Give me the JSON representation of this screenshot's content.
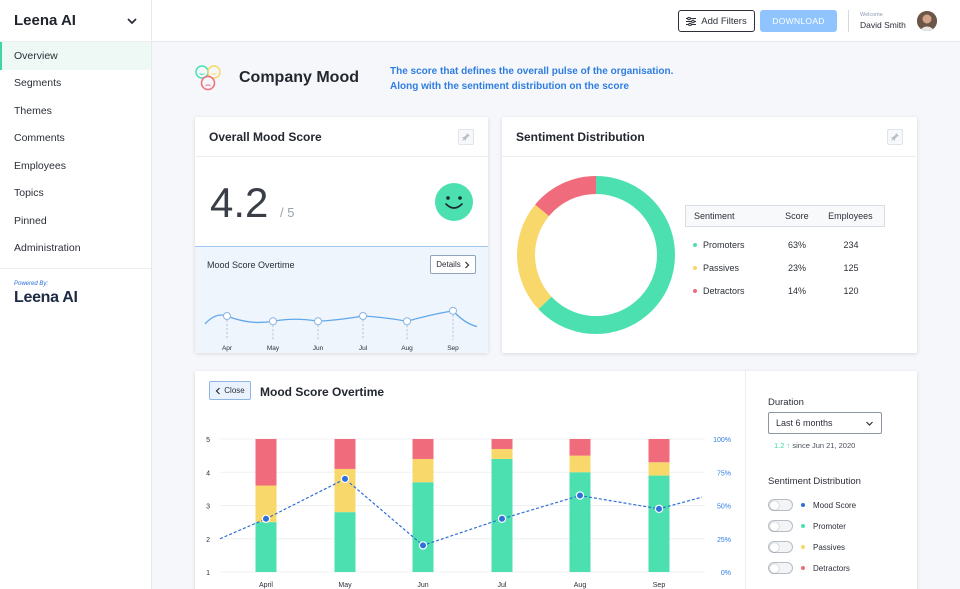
{
  "app": {
    "title": "Leena AI"
  },
  "sidebar": {
    "items": [
      {
        "label": "Overview",
        "active": true
      },
      {
        "label": "Segments"
      },
      {
        "label": "Themes"
      },
      {
        "label": "Comments"
      },
      {
        "label": "Employees"
      },
      {
        "label": "Topics"
      },
      {
        "label": "Pinned"
      },
      {
        "label": "Administration"
      }
    ],
    "powered_by": "Powered By:",
    "logo_text": "Leena AI"
  },
  "topbar": {
    "filter_label": "Add Filters",
    "download_label": "DOWNLOAD",
    "welcome": "Welcome",
    "user_name": "David Smith"
  },
  "header": {
    "title": "Company Mood",
    "desc_line1": "The score that defines the overall pulse of the organisation.",
    "desc_line2": "Along with the sentiment distribution on the score"
  },
  "mood_card": {
    "title": "Overall Mood Score",
    "score": "4.2",
    "denominator": "/ 5",
    "trend_title": "Mood Score Overtime",
    "details_label": "Details",
    "months": [
      "Apr",
      "May",
      "Jun",
      "Jul",
      "Aug",
      "Sep"
    ]
  },
  "sentiment_card": {
    "title": "Sentiment Distribution",
    "headers": [
      "Sentiment",
      "Score",
      "Employees"
    ],
    "rows": [
      {
        "name": "Promoters",
        "score": "63%",
        "employees": "234",
        "color": "#4ce0b0"
      },
      {
        "name": "Passives",
        "score": "23%",
        "employees": "125",
        "color": "#f8d86a"
      },
      {
        "name": "Detractors",
        "score": "14%",
        "employees": "120",
        "color": "#f06b7c"
      }
    ]
  },
  "overtime": {
    "close_label": "Close",
    "title": "Mood Score Overtime",
    "duration_label": "Duration",
    "duration_value": "Last 6 months",
    "change": "1.2",
    "since": "since Jun 21, 2020",
    "dist_label": "Sentiment Distribution",
    "toggles": [
      {
        "label": "Mood Score",
        "color": "#2f6fd8"
      },
      {
        "label": "Promoter",
        "color": "#4ce0b0"
      },
      {
        "label": "Passives",
        "color": "#f8d86a"
      },
      {
        "label": "Detractors",
        "color": "#f06b7c"
      }
    ]
  },
  "chart_data": [
    {
      "type": "line",
      "x": [
        "Apr",
        "May",
        "Jun",
        "Jul",
        "Aug",
        "Sep"
      ],
      "values": [
        4.0,
        3.9,
        3.9,
        4.0,
        3.9,
        4.1
      ]
    },
    {
      "type": "pie",
      "categories": [
        "Promoters",
        "Passives",
        "Detractors"
      ],
      "values": [
        63,
        23,
        14
      ],
      "colors": [
        "#4ce0b0",
        "#f8d86a",
        "#f06b7c"
      ]
    },
    {
      "type": "bar",
      "categories": [
        "April",
        "May",
        "Jun",
        "Jul",
        "Aug",
        "Sep"
      ],
      "series": [
        {
          "name": "Promoter",
          "values": [
            1.5,
            1.8,
            2.7,
            3.4,
            3.0,
            2.9
          ]
        },
        {
          "name": "Passives",
          "values": [
            1.1,
            1.3,
            0.7,
            0.3,
            0.5,
            0.4
          ]
        },
        {
          "name": "Detractors",
          "values": [
            1.4,
            0.9,
            0.6,
            0.3,
            0.5,
            0.7
          ]
        }
      ],
      "line": {
        "name": "Mood Score",
        "values": [
          2.6,
          3.8,
          1.8,
          2.6,
          3.3,
          2.9
        ]
      },
      "ylim": [
        1,
        5
      ],
      "yticks": [
        "1",
        "2",
        "3",
        "4",
        "5"
      ],
      "y2ticks": [
        "0%",
        "25%",
        "50%",
        "75%",
        "100%"
      ]
    }
  ]
}
